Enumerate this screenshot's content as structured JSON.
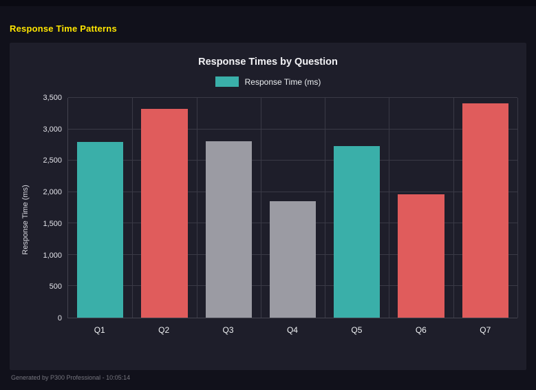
{
  "page": {
    "title": "Response Time Patterns",
    "footer": "Generated by P300 Professional - 10:05:14",
    "colors": {
      "page_background": "#11111b",
      "panel_background": "#1e1e2a",
      "title_yellow": "#ffe600"
    }
  },
  "chart": {
    "title": "Response Times by Question",
    "legend_label": "Response Time (ms)",
    "y_axis_label": "Response Time (ms)"
  },
  "chart_data": {
    "type": "bar",
    "title": "Response Times by Question",
    "categories": [
      "Q1",
      "Q2",
      "Q3",
      "Q4",
      "Q5",
      "Q6",
      "Q7"
    ],
    "values": [
      2800,
      3330,
      2810,
      1850,
      2730,
      1960,
      3410
    ],
    "bar_colors": [
      "teal",
      "red",
      "gray",
      "gray",
      "teal",
      "red",
      "red"
    ],
    "colors": {
      "teal": "#3aafa9",
      "red": "#e05c5c",
      "gray": "#9b9ba3"
    },
    "xlabel": "",
    "ylabel": "Response Time (ms)",
    "ylim": [
      0,
      3500
    ],
    "ytick_step": 500,
    "ytick_labels": [
      "0",
      "500",
      "1,000",
      "1,500",
      "2,000",
      "2,500",
      "3,000",
      "3,500"
    ],
    "grid": true,
    "legend": {
      "position": "top",
      "entries": [
        {
          "label": "Response Time (ms)",
          "color": "teal"
        }
      ]
    }
  }
}
